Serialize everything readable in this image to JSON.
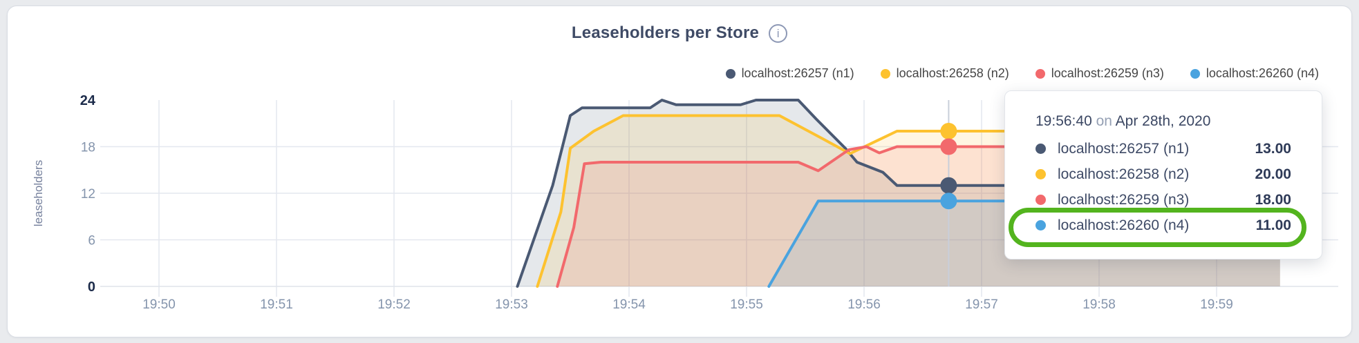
{
  "header": {
    "title": "Leaseholders per Store",
    "info_icon": "i"
  },
  "legend": {
    "items": [
      {
        "label": "localhost:26257 (n1)"
      },
      {
        "label": "localhost:26258 (n2)"
      },
      {
        "label": "localhost:26259 (n3)"
      },
      {
        "label": "localhost:26260 (n4)"
      }
    ]
  },
  "tooltip": {
    "time": "19:56:40",
    "preposition": "on",
    "date": "Apr 28th, 2020",
    "rows": [
      {
        "label": "localhost:26257 (n1)",
        "value": "13.00"
      },
      {
        "label": "localhost:26258 (n2)",
        "value": "20.00"
      },
      {
        "label": "localhost:26259 (n3)",
        "value": "18.00"
      },
      {
        "label": "localhost:26260 (n4)",
        "value": "11.00"
      }
    ],
    "highlighted_row": "localhost:26260 (n4)"
  },
  "chart_data": {
    "type": "area",
    "title": "Leaseholders per Store",
    "xlabel": "",
    "ylabel": "leaseholders",
    "x_unit": "minutes after 19:50",
    "x_ticks": [
      "19:50",
      "19:51",
      "19:52",
      "19:53",
      "19:54",
      "19:55",
      "19:56",
      "19:57",
      "19:58",
      "19:59"
    ],
    "y_ticks": [
      0,
      6,
      12,
      18,
      24
    ],
    "y_bold_ticks": [
      0,
      24
    ],
    "ylim": [
      0,
      24
    ],
    "grid": true,
    "legend_position": "top-right",
    "fill_opacity": 0.14,
    "series": [
      {
        "name": "localhost:26257 (n1)",
        "color": "#4a5973",
        "points": [
          [
            3.05,
            0
          ],
          [
            3.35,
            13
          ],
          [
            3.5,
            22
          ],
          [
            3.6,
            23
          ],
          [
            4.18,
            23
          ],
          [
            4.28,
            24
          ],
          [
            4.4,
            23.4
          ],
          [
            4.95,
            23.4
          ],
          [
            5.08,
            24
          ],
          [
            5.44,
            24
          ],
          [
            5.59,
            21.6
          ],
          [
            5.84,
            17.8
          ],
          [
            5.94,
            16
          ],
          [
            6.16,
            14.7
          ],
          [
            6.28,
            13
          ],
          [
            9.54,
            13
          ]
        ]
      },
      {
        "name": "localhost:26258 (n2)",
        "color": "#fdc22f",
        "points": [
          [
            3.22,
            0
          ],
          [
            3.42,
            9.6
          ],
          [
            3.5,
            17.8
          ],
          [
            3.7,
            20
          ],
          [
            3.95,
            22
          ],
          [
            5.28,
            22
          ],
          [
            5.65,
            19
          ],
          [
            5.88,
            17.1
          ],
          [
            6.28,
            20
          ],
          [
            9.54,
            20
          ]
        ]
      },
      {
        "name": "localhost:26259 (n3)",
        "color": "#f2696c",
        "points": [
          [
            3.39,
            0
          ],
          [
            3.53,
            7.6
          ],
          [
            3.62,
            15.8
          ],
          [
            3.76,
            16
          ],
          [
            5.44,
            16
          ],
          [
            5.61,
            14.9
          ],
          [
            5.87,
            17.6
          ],
          [
            6.02,
            18
          ],
          [
            6.13,
            17.2
          ],
          [
            6.28,
            18
          ],
          [
            9.54,
            18
          ]
        ]
      },
      {
        "name": "localhost:26260 (n4)",
        "color": "#4aa3df",
        "points": [
          [
            5.19,
            0
          ],
          [
            5.61,
            11
          ],
          [
            9.54,
            11
          ]
        ]
      }
    ],
    "hover": {
      "x_minutes": 6.72,
      "time": "19:56:40",
      "values": [
        13,
        20,
        18,
        11
      ]
    }
  }
}
